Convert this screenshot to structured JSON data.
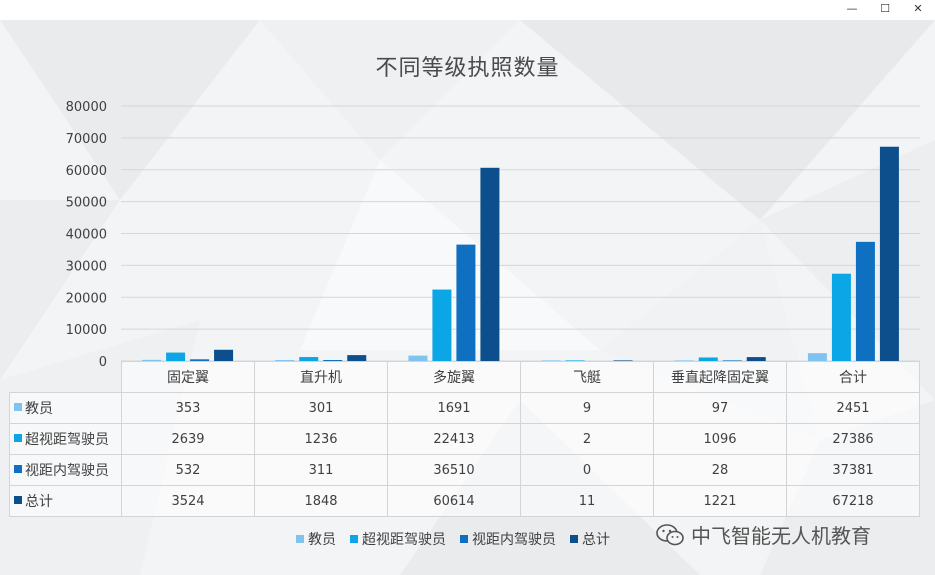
{
  "window": {
    "minimize_glyph": "—",
    "maximize_glyph": "☐",
    "close_glyph": "✕"
  },
  "chart_data": {
    "type": "bar",
    "title": "不同等级执照数量",
    "categories": [
      "固定翼",
      "直升机",
      "多旋翼",
      "飞艇",
      "垂直起降固定翼",
      "合计"
    ],
    "series": [
      {
        "name": "教员",
        "color": "#7fc3ef",
        "values": [
          353,
          301,
          1691,
          9,
          97,
          2451
        ]
      },
      {
        "name": "超视距驾驶员",
        "color": "#0aa6e6",
        "values": [
          2639,
          1236,
          22413,
          2,
          1096,
          27386
        ]
      },
      {
        "name": "视距内驾驶员",
        "color": "#0f6fc0",
        "values": [
          532,
          311,
          36510,
          0,
          28,
          37381
        ]
      },
      {
        "name": "总计",
        "color": "#0c4f8c",
        "values": [
          3524,
          1848,
          60614,
          11,
          1221,
          67218
        ]
      }
    ],
    "ylim": [
      0,
      80000
    ],
    "yticks": [
      "0",
      "10000",
      "20000",
      "30000",
      "40000",
      "50000",
      "60000",
      "70000",
      "80000"
    ],
    "grid": true,
    "legend_position": "bottom",
    "data_table": true
  },
  "watermark": {
    "text": "中飞智能无人机教育"
  }
}
